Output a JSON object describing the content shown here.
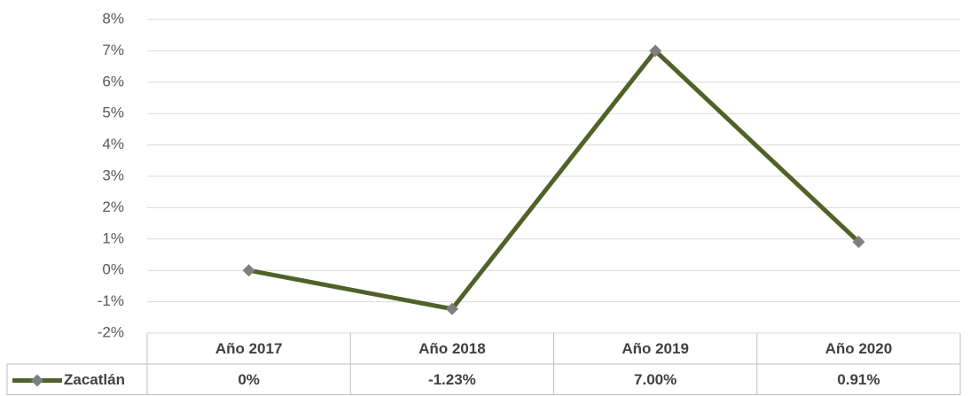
{
  "chart_data": {
    "type": "line",
    "categories": [
      "Año 2017",
      "Año 2018",
      "Año 2019",
      "Año 2020"
    ],
    "series": [
      {
        "name": "Zacatlán",
        "color": "#4f6228",
        "marker_color": "#7f7f7f",
        "values": [
          0,
          -1.23,
          7.0,
          0.91
        ],
        "value_labels": [
          "0%",
          "-1.23%",
          "7.00%",
          "0.91%"
        ]
      }
    ],
    "ylim": [
      -2,
      8
    ],
    "yticks": [
      {
        "value": -2,
        "label": "-2%"
      },
      {
        "value": -1,
        "label": "-1%"
      },
      {
        "value": 0,
        "label": "0%"
      },
      {
        "value": 1,
        "label": "1%"
      },
      {
        "value": 2,
        "label": "2%"
      },
      {
        "value": 3,
        "label": "3%"
      },
      {
        "value": 4,
        "label": "4%"
      },
      {
        "value": 5,
        "label": "5%"
      },
      {
        "value": 6,
        "label": "6%"
      },
      {
        "value": 7,
        "label": "7%"
      },
      {
        "value": 8,
        "label": "8%"
      }
    ],
    "grid": true,
    "data_table": true
  }
}
